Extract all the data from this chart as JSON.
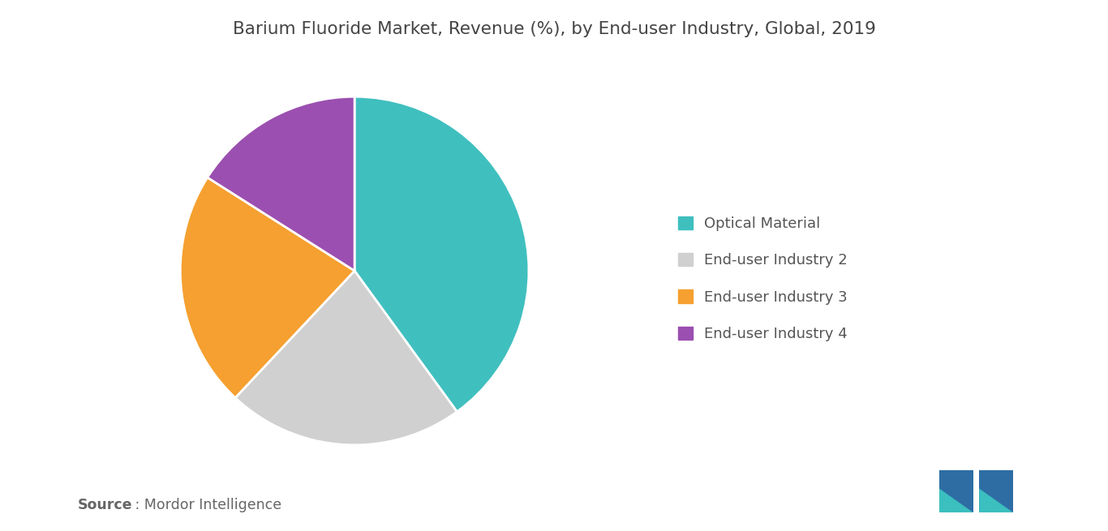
{
  "title": "Barium Fluoride Market, Revenue (%), by End-user Industry, Global, 2019",
  "slices": [
    40,
    22,
    22,
    16
  ],
  "labels": [
    "Optical Material",
    "End-user Industry 2",
    "End-user Industry 3",
    "End-user Industry 4"
  ],
  "colors": [
    "#40bfbf",
    "#d0d0d0",
    "#f5a030",
    "#9b4fb0"
  ],
  "start_angle": 90,
  "background_color": "#ffffff",
  "title_fontsize": 15.5,
  "legend_fontsize": 13,
  "source_fontsize": 12.5,
  "source_bold": "Source",
  "source_rest": " : Mordor Intelligence",
  "edge_color": "#ffffff",
  "edge_linewidth": 2.0
}
